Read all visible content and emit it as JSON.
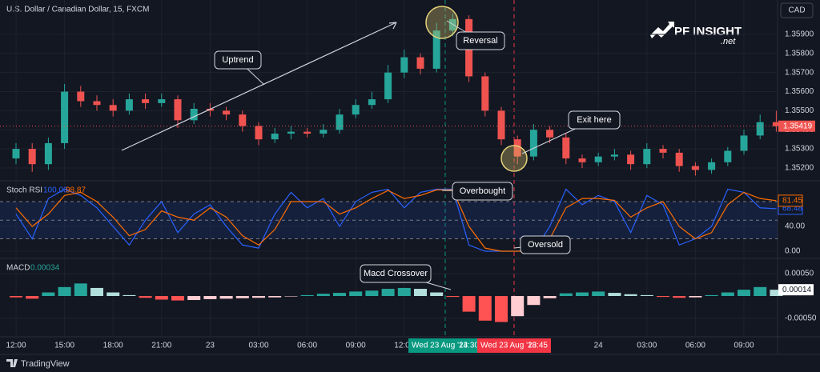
{
  "header": {
    "currency": "CAD"
  },
  "logo": {
    "text": "PF INSIGHT",
    "suffix": ".net"
  },
  "footer": "TradingView",
  "cursor_badges": [
    {
      "date": "Wed 23 Aug '23",
      "time": "14:30",
      "color": "#089981"
    },
    {
      "date": "Wed 23 Aug '23",
      "time": "18:45",
      "color": "#f23645"
    }
  ],
  "chart_data": [
    {
      "type": "candlestick",
      "title": "U.S. Dollar / Canadian Dollar, 15, FXCM",
      "categories": [
        "12:00",
        null,
        null,
        "15:00",
        null,
        null,
        "18:00",
        null,
        null,
        "21:00",
        null,
        null,
        "23",
        null,
        null,
        "03:00",
        null,
        null,
        "06:00",
        null,
        null,
        "09:00",
        null,
        null,
        "12:00",
        null,
        null,
        null,
        null,
        null,
        null,
        null,
        null,
        null,
        null,
        null,
        "24",
        null,
        null,
        "03:00",
        null,
        null,
        "06:00",
        null,
        null,
        "09:00",
        null,
        null
      ],
      "open": [
        1.3525,
        1.353,
        1.3522,
        1.3533,
        1.356,
        1.3555,
        1.3553,
        1.355,
        1.3556,
        1.3554,
        1.3556,
        1.3545,
        1.3551,
        1.355,
        1.3548,
        1.3542,
        1.3535,
        1.3538,
        1.3539,
        1.3538,
        1.354,
        1.3548,
        1.3553,
        1.3556,
        1.357,
        1.3578,
        1.3572,
        1.3592,
        1.3598,
        1.3568,
        1.355,
        1.3535,
        1.3526,
        1.354,
        1.3536,
        1.3525,
        1.3523,
        1.3526,
        1.3527,
        1.3522,
        1.353,
        1.3528,
        1.3521,
        1.3519,
        1.3523,
        1.3529,
        1.3537,
        1.3544
      ],
      "high": [
        1.3533,
        1.3533,
        1.3536,
        1.3564,
        1.3563,
        1.3558,
        1.3556,
        1.3559,
        1.3559,
        1.3559,
        1.3558,
        1.3554,
        1.3554,
        1.3552,
        1.355,
        1.3544,
        1.3541,
        1.3542,
        1.3541,
        1.3543,
        1.3551,
        1.3556,
        1.356,
        1.3574,
        1.3582,
        1.358,
        1.3596,
        1.3601,
        1.36,
        1.357,
        1.3552,
        1.3537,
        1.3543,
        1.3542,
        1.3538,
        1.3527,
        1.3528,
        1.353,
        1.3529,
        1.3533,
        1.3532,
        1.353,
        1.3523,
        1.3525,
        1.3531,
        1.354,
        1.3548,
        1.355
      ],
      "low": [
        1.3522,
        1.3518,
        1.3519,
        1.353,
        1.3552,
        1.355,
        1.3547,
        1.3548,
        1.3551,
        1.3552,
        1.3541,
        1.3543,
        1.3547,
        1.3545,
        1.3539,
        1.3532,
        1.3533,
        1.3535,
        1.3536,
        1.3536,
        1.3538,
        1.3546,
        1.3551,
        1.3554,
        1.3567,
        1.3569,
        1.357,
        1.3589,
        1.3565,
        1.3547,
        1.3532,
        1.3522,
        1.3524,
        1.3533,
        1.3522,
        1.352,
        1.3521,
        1.3524,
        1.3519,
        1.352,
        1.3525,
        1.3518,
        1.3516,
        1.3517,
        1.3521,
        1.3527,
        1.3535,
        1.3539
      ],
      "close": [
        1.353,
        1.3522,
        1.3533,
        1.356,
        1.3555,
        1.3553,
        1.355,
        1.3556,
        1.3554,
        1.3556,
        1.3545,
        1.3551,
        1.355,
        1.3548,
        1.3542,
        1.3535,
        1.3538,
        1.3539,
        1.3538,
        1.354,
        1.3548,
        1.3553,
        1.3556,
        1.357,
        1.3578,
        1.3572,
        1.3592,
        1.3598,
        1.3568,
        1.355,
        1.3535,
        1.3526,
        1.354,
        1.3536,
        1.3525,
        1.3523,
        1.3526,
        1.3527,
        1.3522,
        1.353,
        1.3528,
        1.3521,
        1.3519,
        1.3523,
        1.3529,
        1.3537,
        1.3544,
        1.35419
      ],
      "up_color": "#26a69a",
      "down_color": "#ef5350",
      "ylim": [
        1.35137,
        1.3608
      ],
      "yticks": [
        {
          "value": 1.352,
          "label": "1.35200"
        },
        {
          "value": 1.353,
          "label": "1.35300"
        },
        {
          "value": 1.354,
          "label": "1.35400"
        },
        {
          "value": 1.355,
          "label": "1.35500"
        },
        {
          "value": 1.356,
          "label": "1.35600"
        },
        {
          "value": 1.357,
          "label": "1.35700"
        },
        {
          "value": 1.358,
          "label": "1.35800"
        },
        {
          "value": 1.359,
          "label": "1.35900"
        }
      ],
      "last_price": {
        "value": 1.35419,
        "label": "1.35419"
      },
      "annotations": [
        "Uptrend",
        "Reversal",
        "Exit here"
      ]
    },
    {
      "type": "line",
      "title": "Stoch RSI",
      "series": [
        {
          "color": "#2962ff",
          "values": [
            60,
            20,
            85,
            100,
            90,
            70,
            40,
            10,
            50,
            80,
            30,
            60,
            75,
            40,
            10,
            5,
            60,
            95,
            70,
            85,
            40,
            80,
            95,
            100,
            70,
            95,
            100,
            100,
            10,
            0,
            0,
            0,
            0,
            40,
            100,
            75,
            90,
            80,
            30,
            90,
            75,
            10,
            20,
            40,
            100,
            95,
            70,
            68.48
          ],
          "cursor_value": {
            "value": 100,
            "label": "100.00"
          },
          "last_value": {
            "value": 68.48,
            "label": "68.48"
          }
        },
        {
          "color": "#ff6d00",
          "values": [
            70,
            40,
            60,
            90,
            95,
            80,
            55,
            25,
            35,
            65,
            55,
            50,
            70,
            55,
            25,
            10,
            35,
            80,
            80,
            80,
            60,
            70,
            85,
            98,
            85,
            90,
            98.87,
            99,
            40,
            5,
            0,
            0,
            0,
            20,
            70,
            85,
            85,
            82,
            55,
            70,
            80,
            40,
            20,
            30,
            75,
            95,
            85,
            81.45
          ],
          "cursor_value": {
            "value": 98.87,
            "label": "98.87"
          },
          "last_value": {
            "value": 81.45,
            "label": "81.45"
          }
        }
      ],
      "bands": [
        80,
        50,
        20
      ],
      "band_color": "#2962ff",
      "ylim": [
        -10.3,
        111
      ],
      "yticks": [
        {
          "value": 40,
          "label": "40.00"
        },
        {
          "value": 0,
          "label": "0.00"
        }
      ],
      "annotations": [
        "Overbought",
        "Oversold"
      ]
    },
    {
      "type": "histogram",
      "title": "MACD",
      "values": [
        -3e-05,
        -6e-05,
        8e-05,
        0.0002,
        0.00028,
        0.00018,
        8e-05,
        2e-05,
        -4e-05,
        -8e-05,
        -0.0001,
        -9e-05,
        -7e-05,
        -6e-05,
        -5e-05,
        -4e-05,
        -3e-05,
        -1e-05,
        2e-05,
        5e-05,
        7e-05,
        0.0001,
        0.00012,
        0.00016,
        0.00018,
        0.00016,
        8e-05,
        -2e-05,
        -0.00035,
        -0.00055,
        -0.00058,
        -0.00045,
        -0.0002,
        -5e-05,
        6e-05,
        8e-05,
        0.0001,
        7e-05,
        4e-05,
        2e-05,
        -2e-05,
        -4e-05,
        -3e-05,
        2e-05,
        8e-05,
        0.00014,
        0.0002,
        0.00014
      ],
      "colors": [
        "#26a69a",
        "#b2dfdb",
        "#ff5252",
        "#ffcdd2"
      ],
      "cursor_value": {
        "value": 0.00034,
        "label": "0.00034"
      },
      "last_value": {
        "value": 0.00014,
        "label": "0.00014"
      },
      "ylim": [
        -0.000893,
        0.000804
      ],
      "yticks": [
        {
          "value": 0.0005,
          "label": "0.00050"
        },
        {
          "value": -0.0005,
          "label": "-0.00050"
        }
      ],
      "annotations": [
        "Macd Crossover"
      ]
    }
  ]
}
